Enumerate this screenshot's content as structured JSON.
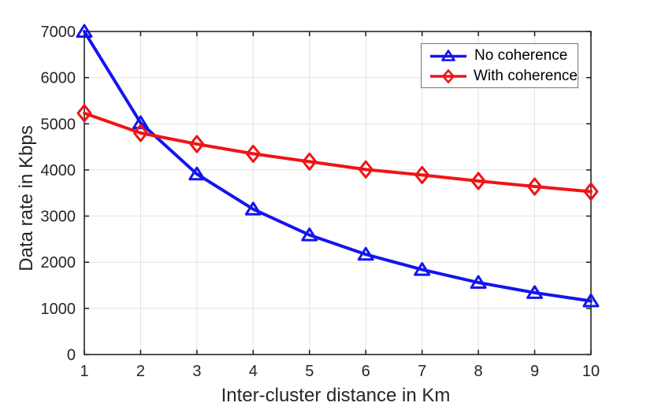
{
  "chart_data": {
    "type": "line",
    "title": "",
    "xlabel": "Inter-cluster distance in Km",
    "ylabel": "Data rate in Kbps",
    "x": [
      1,
      2,
      3,
      4,
      5,
      6,
      7,
      8,
      9,
      10
    ],
    "xlim": [
      1,
      10
    ],
    "ylim": [
      0,
      7000
    ],
    "xticks": [
      1,
      2,
      3,
      4,
      5,
      6,
      7,
      8,
      9,
      10
    ],
    "yticks": [
      0,
      1000,
      2000,
      3000,
      4000,
      5000,
      6000,
      7000
    ],
    "grid": true,
    "grid_color": "#E2E2E2",
    "axis_color": "#262626",
    "background": "#FFFFFF",
    "legend": {
      "position": "top-right",
      "border_color": "#757575",
      "background": "#FFFFFF"
    },
    "series": [
      {
        "name": "No coherence",
        "color": "#1414F0",
        "marker": "triangle-up",
        "values": [
          7000,
          5020,
          3910,
          3150,
          2590,
          2170,
          1840,
          1560,
          1340,
          1160
        ]
      },
      {
        "name": "With coherence",
        "color": "#F01414",
        "marker": "diamond",
        "values": [
          5230,
          4800,
          4560,
          4350,
          4180,
          4010,
          3890,
          3760,
          3640,
          3530
        ]
      }
    ]
  }
}
